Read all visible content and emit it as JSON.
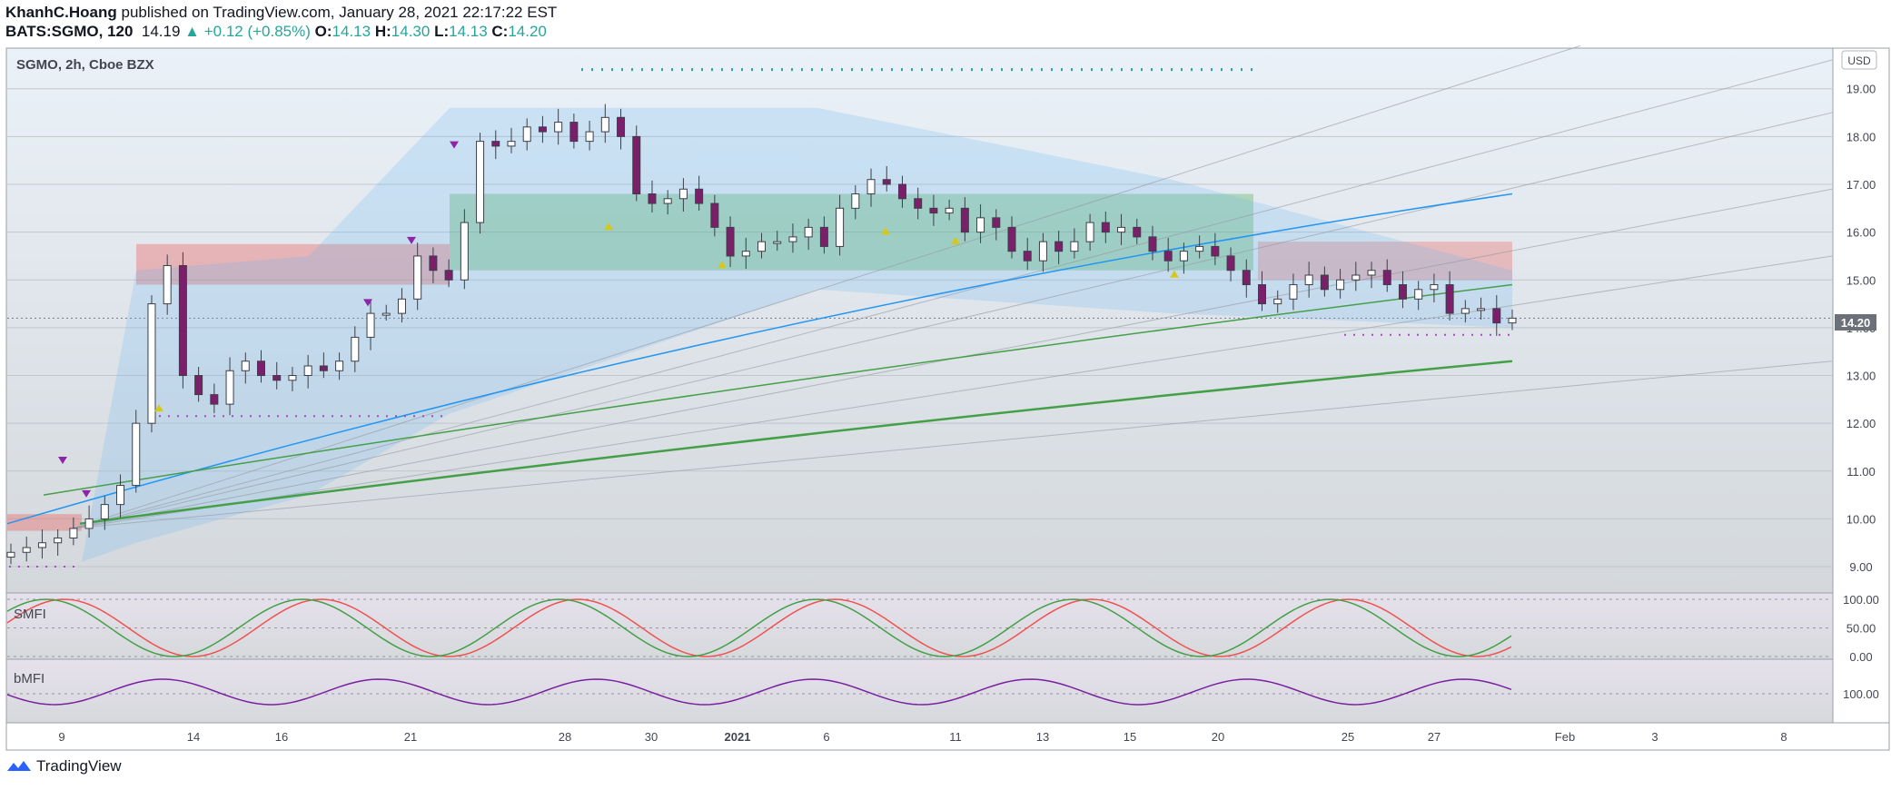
{
  "header": {
    "author": "KhanhC.Hoang",
    "published": "published on TradingView.com, January 28, 2021 22:17:22 EST",
    "symbol": "BATS:SGMO, 120",
    "last": "14.19",
    "change": "▲ +0.12 (+0.85%)",
    "o_label": "O:",
    "o": "14.13",
    "h_label": "H:",
    "h": "14.30",
    "l_label": "L:",
    "l": "14.13",
    "c_label": "C:",
    "c": "14.20"
  },
  "pane_title": "SGMO, 2h, Cboe BZX",
  "currency": "USD",
  "price_tag": "14.20",
  "footer": {
    "brand": "TradingView"
  },
  "colors": {
    "up": "#26a69a",
    "down": "#7b1f6a",
    "neutral": "#b2b5be",
    "bull_cloud": "#4caf50",
    "bear_cloud": "#ef5350",
    "ma_blue": "#2196f3",
    "ma_green": "#43a047"
  },
  "chart_data": [
    {
      "type": "candlestick",
      "title": "SGMO, 2h, Cboe BZX",
      "y_axis": {
        "ticks": [
          "19.00",
          "18.00",
          "17.00",
          "16.00",
          "15.00",
          "14.00",
          "13.00",
          "12.00",
          "11.00",
          "10.00",
          "9.00"
        ],
        "ylim": [
          8.45,
          19.85
        ],
        "unit": "USD"
      },
      "x_ticks": [
        "9",
        "14",
        "16",
        "21",
        "28",
        "30",
        "2021",
        "6",
        "11",
        "13",
        "15",
        "20",
        "25",
        "27",
        "Feb",
        "3",
        "8"
      ],
      "current_price": 14.2,
      "close_series": [
        9.3,
        9.4,
        9.5,
        9.6,
        9.8,
        10.0,
        10.3,
        10.7,
        12.0,
        14.5,
        15.3,
        13.0,
        12.6,
        12.4,
        13.1,
        13.3,
        13.0,
        12.9,
        13.0,
        13.2,
        13.1,
        13.3,
        13.8,
        14.3,
        14.3,
        14.6,
        15.5,
        15.2,
        15.0,
        16.2,
        17.9,
        17.8,
        17.9,
        18.2,
        18.1,
        18.3,
        17.9,
        18.1,
        18.4,
        18.0,
        16.8,
        16.6,
        16.7,
        16.9,
        16.6,
        16.1,
        15.5,
        15.6,
        15.8,
        15.8,
        15.9,
        16.1,
        15.7,
        16.5,
        16.8,
        17.1,
        17.0,
        16.7,
        16.5,
        16.4,
        16.5,
        16.0,
        16.3,
        16.1,
        15.6,
        15.4,
        15.8,
        15.6,
        15.8,
        16.2,
        16.0,
        16.1,
        15.9,
        15.6,
        15.4,
        15.6,
        15.7,
        15.5,
        15.2,
        14.9,
        14.5,
        14.6,
        14.9,
        15.1,
        14.8,
        15.0,
        15.1,
        15.2,
        14.9,
        14.6,
        14.8,
        14.9,
        14.3,
        14.4,
        14.4,
        14.1,
        14.2
      ],
      "moving_averages": [
        {
          "color": "blue",
          "start": 9.9,
          "end": 16.8
        },
        {
          "color": "green",
          "start": 10.5,
          "end": 14.9
        },
        {
          "color": "green",
          "start": 9.9,
          "end": 13.3
        }
      ]
    },
    {
      "type": "line",
      "title": "SMFI",
      "y_axis": {
        "ticks": [
          "100.00",
          "50.00",
          "0.00"
        ]
      }
    },
    {
      "type": "line",
      "title": "bMFI",
      "y_axis": {
        "ticks": [
          "100.00"
        ]
      }
    }
  ]
}
